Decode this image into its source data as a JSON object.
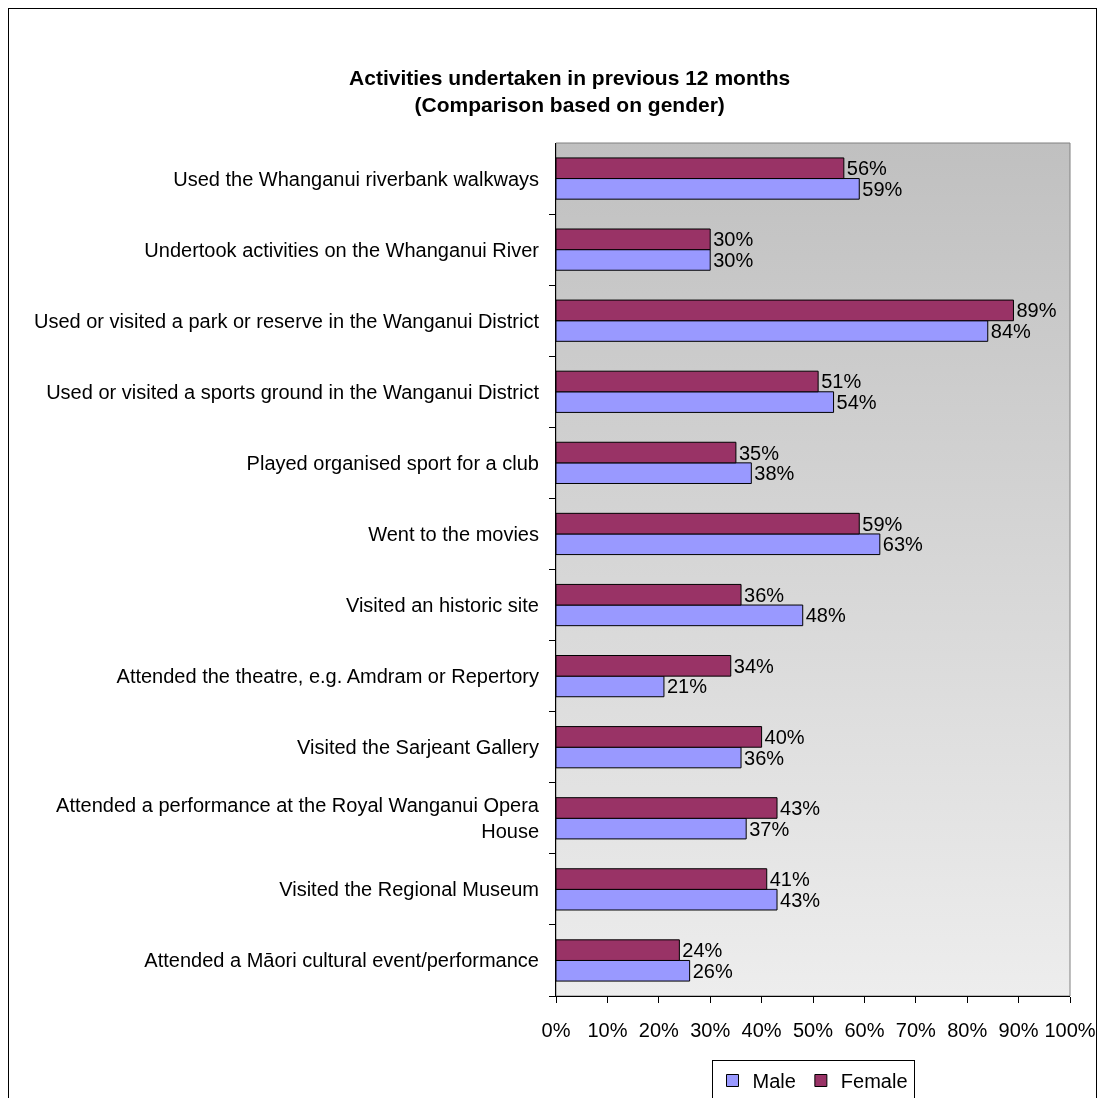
{
  "chart_data": {
    "type": "bar",
    "orientation": "horizontal",
    "title": "Activities undertaken in previous 12 months\n(Comparison based on gender)",
    "categories": [
      "Used the Whanganui riverbank walkways",
      "Undertook activities on the Whanganui River",
      "Used or visited a park or reserve in the Wanganui District",
      "Used or visited a sports ground in the Wanganui District",
      "Played organised sport for a club",
      "Went to the movies",
      "Visited an historic site",
      "Attended the theatre, e.g. Amdram or Repertory",
      "Visited the Sarjeant Gallery",
      "Attended a performance at the Royal Wanganui Opera House",
      "Visited the Regional Museum",
      "Attended a Māori cultural event/performance"
    ],
    "series": [
      {
        "name": "Male",
        "color": "#9999ff",
        "values": [
          59,
          30,
          84,
          54,
          38,
          63,
          48,
          21,
          36,
          37,
          43,
          26
        ],
        "value_labels": [
          "59%",
          "30%",
          "84%",
          "54%",
          "38%",
          "63%",
          "48%",
          "21%",
          "36%",
          "37%",
          "43%",
          "26%"
        ]
      },
      {
        "name": "Female",
        "color": "#993366",
        "values": [
          56,
          30,
          89,
          51,
          35,
          59,
          36,
          34,
          40,
          43,
          41,
          24
        ],
        "value_labels": [
          "56%",
          "30%",
          "89%",
          "51%",
          "35%",
          "59%",
          "36%",
          "34%",
          "40%",
          "43%",
          "41%",
          "24%"
        ]
      }
    ],
    "xlim": [
      0,
      100
    ],
    "xticks": [
      {
        "value": 0,
        "label": "0%"
      },
      {
        "value": 10,
        "label": "10%"
      },
      {
        "value": 20,
        "label": "20%"
      },
      {
        "value": 30,
        "label": "30%"
      },
      {
        "value": 40,
        "label": "40%"
      },
      {
        "value": 50,
        "label": "50%"
      },
      {
        "value": 60,
        "label": "60%"
      },
      {
        "value": 70,
        "label": "70%"
      },
      {
        "value": 80,
        "label": "80%"
      },
      {
        "value": 90,
        "label": "90%"
      },
      {
        "value": 100,
        "label": "100%"
      }
    ],
    "legend": "bottom"
  }
}
